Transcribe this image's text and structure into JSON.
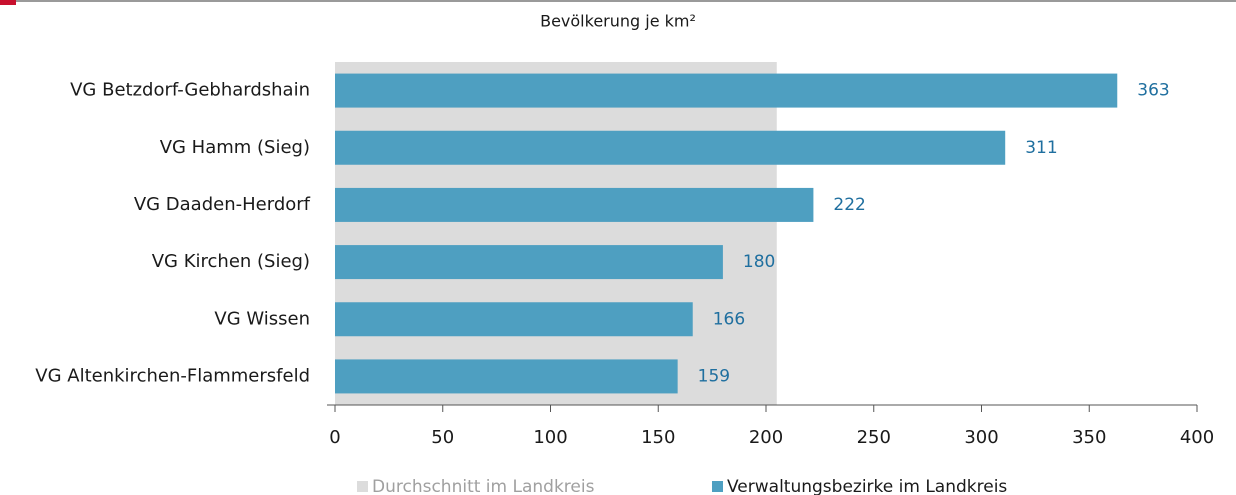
{
  "chart_data": {
    "type": "bar",
    "orientation": "horizontal",
    "title": "Bevölkerung je km²",
    "categories": [
      "VG Betzdorf-Gebhardshain",
      "VG Hamm (Sieg)",
      "VG Daaden-Herdorf",
      "VG Kirchen (Sieg)",
      "VG Wissen",
      "VG Altenkirchen-Flammersfeld"
    ],
    "series": [
      {
        "name": "Verwaltungsbezirke im Landkreis",
        "color": "#4e9fc1",
        "values": [
          363,
          311,
          222,
          180,
          166,
          159
        ]
      }
    ],
    "average": {
      "name": "Durchschnitt im Landkreis",
      "color": "#dcdcdc",
      "value": 205
    },
    "xlim": [
      0,
      400
    ],
    "xticks": [
      0,
      50,
      100,
      150,
      200,
      250,
      300,
      350,
      400
    ]
  }
}
